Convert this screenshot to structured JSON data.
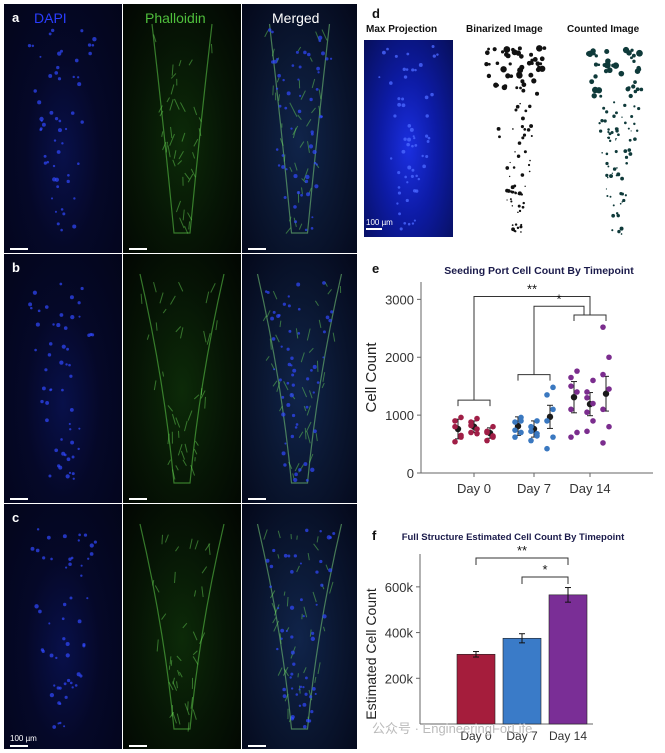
{
  "microscopy": {
    "channels": [
      "DAPI",
      "Phalloidin",
      "Merged"
    ],
    "channel_colors": [
      "#1a2cff",
      "#49b53a",
      "#ffffff"
    ],
    "rows": [
      "a",
      "b",
      "c"
    ],
    "scale_text": "100 µm"
  },
  "panel_d": {
    "letter": "d",
    "titles": [
      "Max Projection",
      "Binarized Image",
      "Counted Image"
    ],
    "scale_text": "100 µm"
  },
  "chart_data": [
    {
      "panel": "e",
      "type": "scatter",
      "title": "Seeding Port Cell Count By Timepoint",
      "ylabel": "Cell Count",
      "xlabel": "",
      "categories": [
        "Day 0",
        "Day 7",
        "Day 14"
      ],
      "ylim": [
        0,
        3300
      ],
      "yticks": [
        0,
        1000,
        2000,
        3000
      ],
      "colors": [
        "#a01e46",
        "#3a78c0",
        "#7b2d8e"
      ],
      "groups": [
        {
          "category": "Day 0",
          "replicates": [
            {
              "mean": 760,
              "err": 170,
              "points": [
                540,
                650,
                900,
                960,
                800,
                620
              ]
            },
            {
              "mean": 800,
              "err": 100,
              "points": [
                700,
                760,
                880,
                940,
                820,
                680
              ]
            },
            {
              "mean": 690,
              "err": 90,
              "points": [
                560,
                640,
                720,
                800,
                700,
                620
              ]
            }
          ]
        },
        {
          "category": "Day 7",
          "replicates": [
            {
              "mean": 810,
              "err": 160,
              "points": [
                620,
                700,
                880,
                960,
                740,
                900
              ]
            },
            {
              "mean": 760,
              "err": 140,
              "points": [
                560,
                640,
                800,
                900,
                720,
                680
              ]
            },
            {
              "mean": 970,
              "err": 200,
              "points": [
                420,
                620,
                900,
                1100,
                1350,
                1480
              ]
            }
          ]
        },
        {
          "category": "Day 14",
          "replicates": [
            {
              "mean": 1310,
              "err": 270,
              "points": [
                620,
                700,
                1100,
                1400,
                1650,
                1760,
                1500
              ]
            },
            {
              "mean": 1190,
              "err": 200,
              "points": [
                720,
                900,
                1050,
                1200,
                1400,
                1600,
                1300
              ]
            },
            {
              "mean": 1370,
              "err": 300,
              "points": [
                520,
                800,
                1100,
                1450,
                1700,
                2000,
                2520
              ]
            }
          ]
        }
      ],
      "significance": [
        {
          "from": "Day 0",
          "to": "Day 14",
          "label": "**"
        },
        {
          "from": "Day 7",
          "to": "Day 14",
          "label": "*"
        }
      ]
    },
    {
      "panel": "f",
      "type": "bar",
      "title": "Full Structure Estimated Cell Count By Timepoint",
      "ylabel": "Estimated Cell Count",
      "xlabel": "",
      "categories": [
        "Day 0",
        "Day 7",
        "Day 14"
      ],
      "values": [
        305000,
        375000,
        565000
      ],
      "errors": [
        12000,
        20000,
        32000
      ],
      "colors": [
        "#a51d3c",
        "#3a7bc8",
        "#7a2e96"
      ],
      "ylim": [
        0,
        700000
      ],
      "yticks": [
        200000,
        400000,
        600000
      ],
      "ytick_labels": [
        "200k",
        "400k",
        "600k"
      ],
      "significance": [
        {
          "from": "Day 0",
          "to": "Day 14",
          "label": "**"
        },
        {
          "from": "Day 7",
          "to": "Day 14",
          "label": "*"
        }
      ]
    }
  ],
  "watermark": "公众号 · EngineeringForLife"
}
